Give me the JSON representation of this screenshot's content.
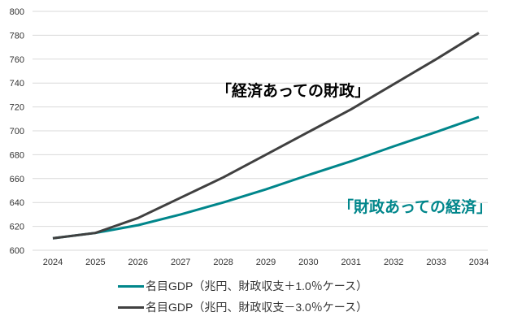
{
  "chart_data": {
    "type": "line",
    "title": "",
    "xlabel": "",
    "ylabel": "",
    "x": [
      "2024",
      "2025",
      "2026",
      "2027",
      "2028",
      "2029",
      "2030",
      "2031",
      "2032",
      "2033",
      "2034"
    ],
    "ylim": [
      600,
      800
    ],
    "yticks": [
      600,
      620,
      640,
      660,
      680,
      700,
      720,
      740,
      760,
      780,
      800
    ],
    "grid": true,
    "legend_placement": "bottom",
    "series": [
      {
        "name": "名目GDP（兆円、財政収支＋1.0％ケース）",
        "color": "#00868B",
        "values": [
          610,
          614.5,
          621,
          630,
          640,
          651,
          663,
          674.5,
          687,
          699,
          711.5
        ]
      },
      {
        "name": "名目GDP（兆円、財政収支－3.0％ケース）",
        "color": "#404040",
        "values": [
          610,
          614.5,
          627,
          644,
          661,
          680,
          699,
          718,
          739,
          760,
          782
        ]
      }
    ],
    "annotations": [
      {
        "text": "「経済あっての財政」",
        "color": "#000000"
      },
      {
        "text": "「財政あっての経済」",
        "color": "#00868B"
      }
    ]
  }
}
